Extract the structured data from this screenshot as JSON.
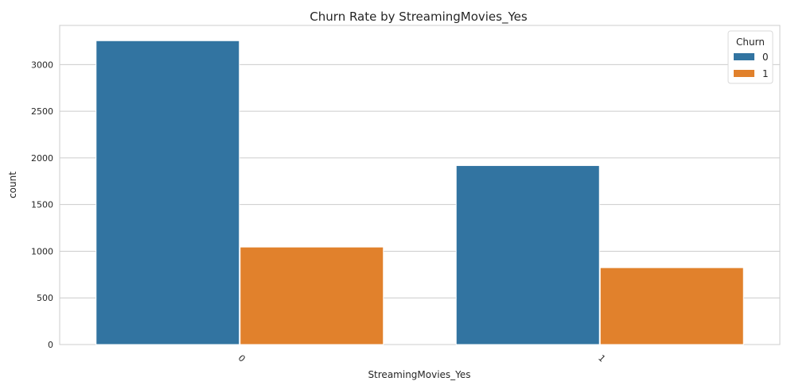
{
  "chart_data": {
    "type": "bar",
    "title": "Churn Rate by StreamingMovies_Yes",
    "xlabel": "StreamingMovies_Yes",
    "ylabel": "count",
    "categories": [
      "0",
      "1"
    ],
    "series": [
      {
        "name": "0",
        "color": "#3274a1",
        "values": [
          3256,
          1918
        ]
      },
      {
        "name": "1",
        "color": "#e1812c",
        "values": [
          1045,
          824
        ]
      }
    ],
    "yticks": [
      "0",
      "500",
      "1000",
      "1500",
      "2000",
      "2500",
      "3000"
    ],
    "ylim": [
      0,
      3420
    ],
    "grid": "horizontal",
    "legend": {
      "title": "Churn",
      "position": "top-right"
    }
  }
}
